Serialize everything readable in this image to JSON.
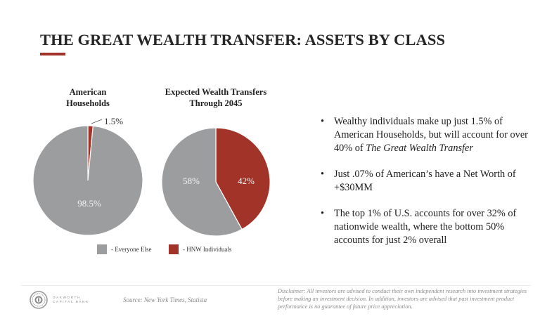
{
  "slide": {
    "title": "THE GREAT WEALTH TRANSFER: ASSETS BY CLASS",
    "accent_color": "#a23329"
  },
  "chart_data": [
    {
      "type": "pie",
      "title": "American Households",
      "title_lines": [
        "American",
        "Households"
      ],
      "categories": [
        "Everyone Else",
        "HNW Individuals"
      ],
      "values": [
        98.5,
        1.5
      ],
      "labels": [
        "98.5%",
        "1.5%"
      ],
      "colors": [
        "#9c9d9f",
        "#a23329"
      ]
    },
    {
      "type": "pie",
      "title": "Expected Wealth Transfers Through 2045",
      "title_lines": [
        "Expected Wealth Transfers",
        "Through 2045"
      ],
      "categories": [
        "Everyone Else",
        "HNW Individuals"
      ],
      "values": [
        58,
        42
      ],
      "labels": [
        "58%",
        "42%"
      ],
      "colors": [
        "#9c9d9f",
        "#a23329"
      ]
    }
  ],
  "legend": [
    {
      "label": "- Everyone Else",
      "color": "#9c9d9f"
    },
    {
      "label": "- HNW Individuals",
      "color": "#a23329"
    }
  ],
  "bullets": [
    {
      "text": "Wealthy individuals make up just 1.5% of American Households, but will account for over 40% of ",
      "italic": "The Great Wealth Transfer"
    },
    {
      "text": "Just .07% of American’s have a Net Worth of +$30MM",
      "italic": ""
    },
    {
      "text": "The top 1% of U.S. accounts for over 32% of nationwide wealth, where the bottom 50% accounts for just 2% overall",
      "italic": ""
    }
  ],
  "footer": {
    "logo_line1": "OAKWORTH",
    "logo_line2": "CAPITAL BANK",
    "source": "Source: New York Times, Statista",
    "disclaimer": "Disclaimer: All investors are advised to conduct their own independent research into investment strategies before making an investment decision. In addition, investors are advised that past investment product performance is no guarantee of future price appreciation."
  }
}
